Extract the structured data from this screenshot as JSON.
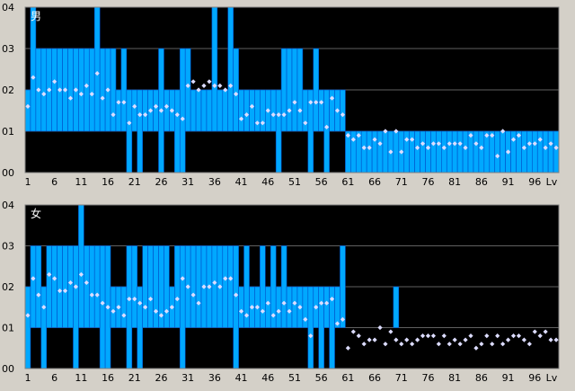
{
  "chart_data": [
    {
      "type": "bar",
      "title": "男",
      "xlabel": "Lv",
      "ylabel": "",
      "x_tick_labels": [
        "1",
        "6",
        "11",
        "16",
        "21",
        "26",
        "31",
        "36",
        "41",
        "46",
        "51",
        "56",
        "61",
        "66",
        "71",
        "76",
        "81",
        "86",
        "91",
        "96",
        "Lv"
      ],
      "y_tick_labels": [
        "04",
        "03",
        "02",
        "01",
        "00"
      ],
      "ylim": [
        0,
        4
      ],
      "xlim": [
        1,
        100
      ],
      "grid": true,
      "colors": {
        "bar": "#00a8ff",
        "bar_edge": "#0050c8",
        "point": "#dcdcff",
        "background": "#000000",
        "grid": "#606060"
      },
      "series": [
        {
          "kind": "bar-range",
          "low": [
            1,
            1,
            1,
            1,
            1,
            1,
            1,
            1,
            1,
            1,
            1,
            1,
            1,
            1,
            1,
            1,
            1,
            1,
            1,
            0,
            1,
            0,
            1,
            1,
            1,
            0,
            1,
            1,
            0,
            0,
            1,
            1,
            1,
            1,
            1,
            1,
            1,
            1,
            1,
            1,
            1,
            1,
            1,
            1,
            1,
            1,
            1,
            0,
            1,
            1,
            1,
            1,
            1,
            0,
            1,
            1,
            0,
            1,
            1,
            1,
            0,
            0,
            0,
            0,
            0,
            0,
            0,
            0,
            0,
            0,
            0,
            0,
            0,
            0,
            0,
            0,
            0,
            0,
            0,
            0,
            0,
            0,
            0,
            0,
            0,
            0,
            0,
            0,
            0,
            0,
            0,
            0,
            0,
            0,
            0,
            0,
            0,
            0,
            0,
            0
          ],
          "high": [
            2,
            4,
            3,
            3,
            3,
            3,
            3,
            3,
            3,
            3,
            3,
            3,
            3,
            4,
            3,
            3,
            3,
            2,
            3,
            2,
            2,
            2,
            2,
            2,
            2,
            3,
            2,
            2,
            2,
            3,
            3,
            2,
            2,
            2,
            2,
            4,
            2,
            2,
            4,
            3,
            2,
            2,
            2,
            2,
            2,
            2,
            2,
            2,
            3,
            3,
            3,
            3,
            2,
            2,
            3,
            2,
            2,
            2,
            2,
            2,
            1,
            1,
            1,
            1,
            1,
            1,
            1,
            1,
            1,
            1,
            1,
            1,
            1,
            1,
            1,
            1,
            1,
            1,
            1,
            1,
            1,
            1,
            1,
            1,
            1,
            1,
            1,
            1,
            1,
            1,
            1,
            1,
            1,
            1,
            1,
            1,
            1,
            1,
            1,
            1
          ]
        },
        {
          "kind": "points",
          "values": [
            1.6,
            2.3,
            2.0,
            1.9,
            2.0,
            2.2,
            2.0,
            2.0,
            1.8,
            2.0,
            1.9,
            2.1,
            1.9,
            2.4,
            1.8,
            2.0,
            1.4,
            1.7,
            1.7,
            1.2,
            1.6,
            1.4,
            1.4,
            1.5,
            1.6,
            1.5,
            1.6,
            1.5,
            1.4,
            1.3,
            2.1,
            2.2,
            2.0,
            2.1,
            2.2,
            2.1,
            2.1,
            2.0,
            2.1,
            1.9,
            1.3,
            1.4,
            1.6,
            1.2,
            1.2,
            1.5,
            1.4,
            1.4,
            1.4,
            1.5,
            1.7,
            1.5,
            1.2,
            1.7,
            1.7,
            1.7,
            1.1,
            1.8,
            1.5,
            1.4,
            0.9,
            0.8,
            0.9,
            0.6,
            0.6,
            0.8,
            0.7,
            1.0,
            0.5,
            1.0,
            0.5,
            0.8,
            0.8,
            0.6,
            0.7,
            0.6,
            0.7,
            0.7,
            0.6,
            0.7,
            0.7,
            0.7,
            0.6,
            0.9,
            0.7,
            0.6,
            0.9,
            0.9,
            0.4,
            1.0,
            0.5,
            0.8,
            0.9,
            0.6,
            0.7,
            0.7,
            0.8,
            0.6,
            0.7,
            0.6
          ]
        }
      ]
    },
    {
      "type": "bar",
      "title": "女",
      "xlabel": "Lv",
      "ylabel": "",
      "x_tick_labels": [
        "1",
        "6",
        "11",
        "16",
        "21",
        "26",
        "31",
        "36",
        "41",
        "46",
        "51",
        "56",
        "61",
        "66",
        "71",
        "76",
        "81",
        "86",
        "91",
        "96",
        "Lv"
      ],
      "y_tick_labels": [
        "04",
        "03",
        "02",
        "01",
        "00"
      ],
      "ylim": [
        0,
        4
      ],
      "xlim": [
        1,
        100
      ],
      "grid": true,
      "colors": {
        "bar": "#00a8ff",
        "bar_edge": "#0050c8",
        "point": "#dcdcff",
        "background": "#000000",
        "grid": "#606060"
      },
      "series": [
        {
          "kind": "bar-range",
          "low": [
            0,
            1,
            1,
            0,
            1,
            1,
            1,
            1,
            1,
            0,
            1,
            1,
            1,
            1,
            0,
            0,
            1,
            1,
            1,
            0,
            1,
            0,
            1,
            1,
            1,
            1,
            1,
            1,
            1,
            0,
            1,
            1,
            1,
            1,
            1,
            1,
            1,
            1,
            1,
            0,
            1,
            1,
            1,
            1,
            1,
            1,
            1,
            1,
            1,
            1,
            1,
            1,
            1,
            0,
            1,
            0,
            1,
            0,
            1,
            1,
            1,
            1,
            1,
            1,
            1,
            1,
            1,
            1,
            1,
            1,
            1,
            1,
            1,
            1,
            1,
            1,
            1,
            1,
            1,
            1,
            1,
            1,
            1,
            1,
            1,
            1,
            1,
            1,
            1,
            1,
            1,
            1,
            1,
            1,
            1,
            1,
            1,
            1,
            1,
            1
          ],
          "high": [
            2,
            3,
            3,
            2,
            3,
            3,
            3,
            3,
            3,
            3,
            4,
            3,
            3,
            3,
            3,
            3,
            2,
            2,
            2,
            3,
            3,
            2,
            3,
            3,
            3,
            3,
            3,
            2,
            3,
            3,
            3,
            3,
            3,
            3,
            3,
            3,
            3,
            3,
            3,
            3,
            2,
            3,
            2,
            2,
            3,
            2,
            3,
            2,
            3,
            2,
            2,
            2,
            2,
            2,
            2,
            2,
            2,
            2,
            2,
            3,
            1,
            1,
            1,
            1,
            1,
            1,
            1,
            1,
            1,
            2,
            1,
            1,
            1,
            1,
            1,
            1,
            1,
            1,
            1,
            1,
            1,
            1,
            1,
            1,
            1,
            1,
            1,
            1,
            1,
            1,
            1,
            1,
            1,
            1,
            1,
            1,
            1,
            1,
            1,
            1
          ]
        },
        {
          "kind": "points",
          "values": [
            1.3,
            2.2,
            1.8,
            1.5,
            2.3,
            2.2,
            1.9,
            1.9,
            2.1,
            2.0,
            2.3,
            2.1,
            1.8,
            1.8,
            1.6,
            1.5,
            1.4,
            1.5,
            1.3,
            1.7,
            1.7,
            1.6,
            1.5,
            1.7,
            1.4,
            1.3,
            1.4,
            1.5,
            1.7,
            2.2,
            2.0,
            1.8,
            1.6,
            2.0,
            2.0,
            2.1,
            2.0,
            2.2,
            2.2,
            1.8,
            1.4,
            1.3,
            1.5,
            1.5,
            1.4,
            1.6,
            1.3,
            1.4,
            1.6,
            1.4,
            1.6,
            1.5,
            1.2,
            0.8,
            1.5,
            1.6,
            1.6,
            1.7,
            1.1,
            1.2,
            0.5,
            0.9,
            0.8,
            0.6,
            0.7,
            0.7,
            1.0,
            0.6,
            0.9,
            0.7,
            0.6,
            0.7,
            0.6,
            0.7,
            0.8,
            0.8,
            0.8,
            0.6,
            0.8,
            0.6,
            0.7,
            0.6,
            0.7,
            0.8,
            0.5,
            0.6,
            0.8,
            0.6,
            0.8,
            0.6,
            0.7,
            0.8,
            0.8,
            0.7,
            0.6,
            0.9,
            0.8,
            0.9,
            0.7,
            0.7
          ]
        }
      ]
    }
  ]
}
